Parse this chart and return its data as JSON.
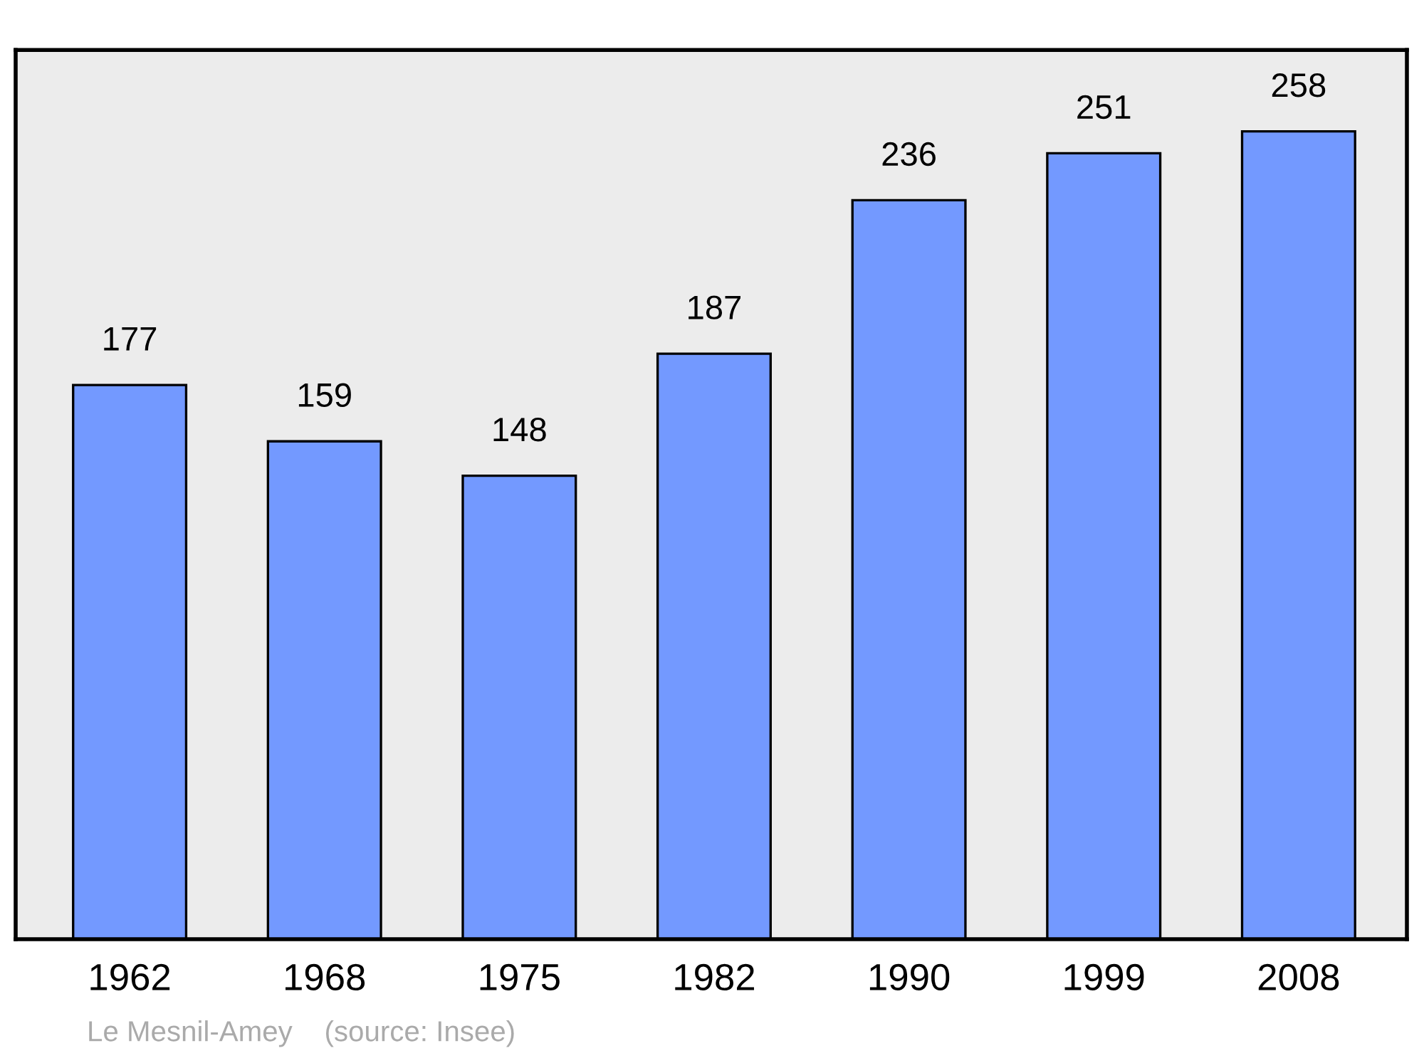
{
  "chart_data": {
    "type": "bar",
    "categories": [
      "1962",
      "1968",
      "1975",
      "1982",
      "1990",
      "1999",
      "2008"
    ],
    "values": [
      177,
      159,
      148,
      187,
      236,
      251,
      258
    ],
    "color": "#7399ff",
    "data_labels": true,
    "ylim": [
      0,
      284
    ],
    "tick_labels": "x",
    "grid": false,
    "legend": false,
    "annotations": [
      "Le Mesnil-Amey    (source: Insee)"
    ]
  }
}
